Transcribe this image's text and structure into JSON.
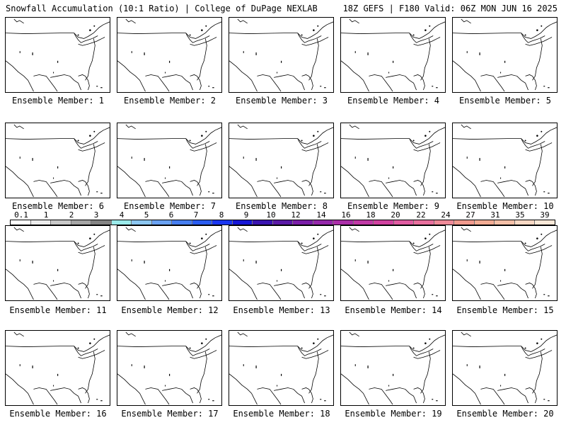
{
  "header": {
    "left_title": "Snowfall Accumulation (10:1 Ratio) | College of DuPage NEXLAB",
    "right_title": "18Z GEFS | F180 Valid: 06Z MON JUN 16 2025"
  },
  "colorbar": {
    "labels": [
      "0.1",
      "1",
      "2",
      "3",
      "4",
      "5",
      "6",
      "7",
      "8",
      "9",
      "10",
      "12",
      "14",
      "16",
      "18",
      "20",
      "22",
      "24",
      "27",
      "31",
      "35",
      "39"
    ],
    "colors": [
      "#ffffff",
      "#ececec",
      "#c8c8c8",
      "#a6a6a6",
      "#848484",
      "#9aeaea",
      "#8cc6f0",
      "#6aa2f2",
      "#467ef0",
      "#2a5cf0",
      "#1a36f0",
      "#1616d6",
      "#3a14b0",
      "#5a1aa6",
      "#7a1ea8",
      "#9428aa",
      "#aa2ea8",
      "#c03aa6",
      "#d042a0",
      "#e05ca2",
      "#e8709e",
      "#ee8a98",
      "#f09a8e",
      "#f2ac94",
      "#f4c0a8",
      "#f8d8c4",
      "#fbe8d8"
    ]
  },
  "members": [
    {
      "label": "Ensemble Member: 1"
    },
    {
      "label": "Ensemble Member: 2"
    },
    {
      "label": "Ensemble Member: 3"
    },
    {
      "label": "Ensemble Member: 4"
    },
    {
      "label": "Ensemble Member: 5"
    },
    {
      "label": "Ensemble Member: 6"
    },
    {
      "label": "Ensemble Member: 7"
    },
    {
      "label": "Ensemble Member: 8"
    },
    {
      "label": "Ensemble Member: 9"
    },
    {
      "label": "Ensemble Member: 10"
    },
    {
      "label": "Ensemble Member: 11"
    },
    {
      "label": "Ensemble Member: 12"
    },
    {
      "label": "Ensemble Member: 13"
    },
    {
      "label": "Ensemble Member: 14"
    },
    {
      "label": "Ensemble Member: 15"
    },
    {
      "label": "Ensemble Member: 16"
    },
    {
      "label": "Ensemble Member: 17"
    },
    {
      "label": "Ensemble Member: 18"
    },
    {
      "label": "Ensemble Member: 19"
    },
    {
      "label": "Ensemble Member: 20"
    }
  ]
}
